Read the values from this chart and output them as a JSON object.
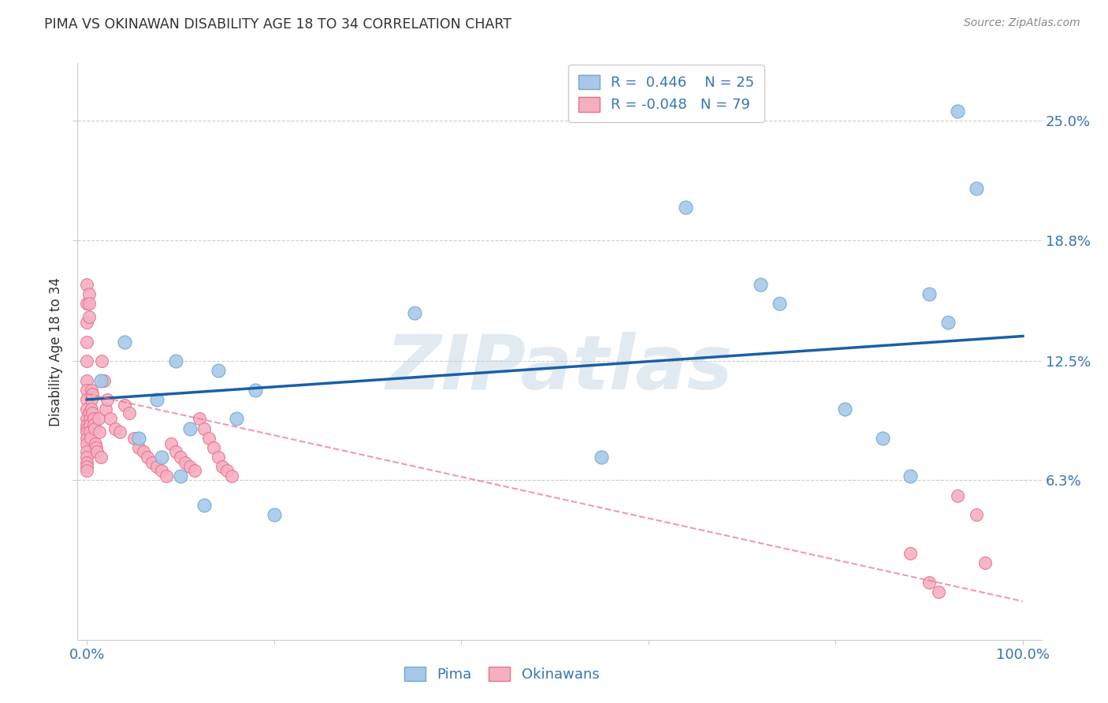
{
  "title": "PIMA VS OKINAWAN DISABILITY AGE 18 TO 34 CORRELATION CHART",
  "ylabel": "Disability Age 18 to 34",
  "source": "Source: ZipAtlas.com",
  "watermark": "ZIPatlas",
  "xlim": [
    -1,
    102
  ],
  "ylim": [
    -2,
    28
  ],
  "ytick_positions": [
    6.3,
    12.5,
    18.8,
    25.0
  ],
  "ytick_labels": [
    "6.3%",
    "12.5%",
    "18.8%",
    "25.0%"
  ],
  "grid_color": "#cccccc",
  "background_color": "#ffffff",
  "pima_color": "#a8c8e8",
  "pima_edge_color": "#6aaad4",
  "okinawan_color": "#f5b0c0",
  "okinawan_edge_color": "#e87090",
  "trend_pima_color": "#1a5fa5",
  "trend_okinawan_color": "#e87090",
  "legend_r_pima": "0.446",
  "legend_r_okinawan": "-0.048",
  "legend_n_pima": "25",
  "legend_n_okinawan": "79",
  "pima_x": [
    1.5,
    4.0,
    5.5,
    7.5,
    8.0,
    9.5,
    10.0,
    11.0,
    12.5,
    14.0,
    16.0,
    18.0,
    20.0,
    35.0,
    55.0,
    64.0,
    72.0,
    74.0,
    81.0,
    85.0,
    88.0,
    90.0,
    92.0,
    93.0,
    95.0
  ],
  "pima_y": [
    11.5,
    13.5,
    8.5,
    10.5,
    7.5,
    12.5,
    6.5,
    9.0,
    5.0,
    12.0,
    9.5,
    11.0,
    4.5,
    15.0,
    7.5,
    20.5,
    16.5,
    15.5,
    10.0,
    8.5,
    6.5,
    16.0,
    14.5,
    25.5,
    21.5
  ],
  "okinawan_x": [
    0.0,
    0.0,
    0.0,
    0.0,
    0.0,
    0.0,
    0.0,
    0.0,
    0.0,
    0.0,
    0.0,
    0.0,
    0.0,
    0.0,
    0.0,
    0.0,
    0.0,
    0.0,
    0.0,
    0.0,
    0.2,
    0.2,
    0.2,
    0.2,
    0.3,
    0.3,
    0.3,
    0.4,
    0.5,
    0.5,
    0.5,
    0.6,
    0.6,
    0.7,
    0.7,
    0.8,
    0.9,
    1.0,
    1.1,
    1.2,
    1.3,
    1.5,
    1.6,
    1.8,
    2.0,
    2.2,
    2.5,
    3.0,
    3.5,
    4.0,
    4.5,
    5.0,
    5.5,
    6.0,
    6.5,
    7.0,
    7.5,
    8.0,
    8.5,
    9.0,
    9.5,
    10.0,
    10.5,
    11.0,
    11.5,
    12.0,
    12.5,
    13.0,
    13.5,
    14.0,
    14.5,
    15.0,
    15.5,
    88.0,
    90.0,
    91.0,
    93.0,
    95.0,
    96.0
  ],
  "okinawan_y": [
    16.5,
    15.5,
    14.5,
    13.5,
    12.5,
    11.5,
    11.0,
    10.5,
    10.0,
    9.5,
    9.2,
    9.0,
    8.8,
    8.5,
    8.2,
    7.8,
    7.5,
    7.2,
    7.0,
    6.8,
    16.0,
    15.5,
    14.8,
    9.8,
    9.5,
    9.2,
    8.8,
    8.5,
    11.0,
    10.5,
    10.0,
    10.8,
    9.8,
    9.5,
    9.2,
    9.0,
    8.2,
    8.0,
    7.8,
    9.5,
    8.8,
    7.5,
    12.5,
    11.5,
    10.0,
    10.5,
    9.5,
    9.0,
    8.8,
    10.2,
    9.8,
    8.5,
    8.0,
    7.8,
    7.5,
    7.2,
    7.0,
    6.8,
    6.5,
    8.2,
    7.8,
    7.5,
    7.2,
    7.0,
    6.8,
    9.5,
    9.0,
    8.5,
    8.0,
    7.5,
    7.0,
    6.8,
    6.5,
    2.5,
    1.0,
    0.5,
    5.5,
    4.5,
    2.0
  ],
  "pima_trend_y": [
    10.5,
    13.8
  ],
  "okinawan_trend_y": [
    10.8,
    0.0
  ],
  "trend_x": [
    0,
    100
  ]
}
